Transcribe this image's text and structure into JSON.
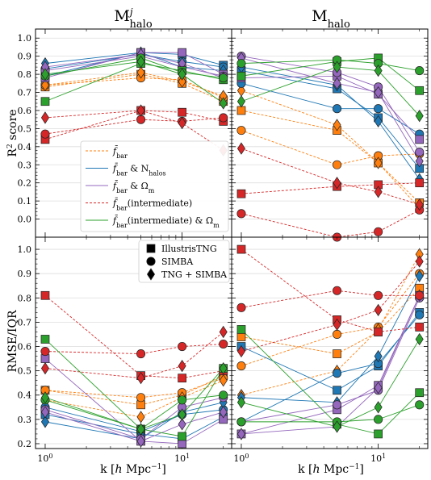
{
  "chart_data": {
    "type": "line+scatter",
    "x_scale": "log",
    "x_ticks": [
      "10^0",
      "10^1"
    ],
    "x_label": "k [h Mpc^-1]",
    "columns": [
      "M^j_halo",
      "M_halo"
    ],
    "colors": {
      "orange": "#ff7f0e",
      "blue": "#1f77b4",
      "purple": "#9467bd",
      "red": "#d62728",
      "green": "#2ca02c"
    },
    "legend_lines": [
      {
        "color": "orange",
        "style": "dashed",
        "label": "f̄_bar"
      },
      {
        "color": "blue",
        "style": "solid",
        "label": "f̄_bar & N_halos"
      },
      {
        "color": "purple",
        "style": "solid",
        "label": "f̄_bar & Ω_m"
      },
      {
        "color": "red",
        "style": "dashed",
        "label": "f̄_bar(intermediate)"
      },
      {
        "color": "green",
        "style": "solid",
        "label": "f̄_bar(intermediate) & Ω_m"
      }
    ],
    "legend_markers": [
      {
        "marker": "square",
        "label": "IllustrisTNG"
      },
      {
        "marker": "circle",
        "label": "SIMBA"
      },
      {
        "marker": "diamond",
        "label": "TNG + SIMBA"
      }
    ],
    "panels": [
      {
        "name": "r2-mhaloj",
        "ylabel": "R^2 score",
        "ylim": [
          -0.1,
          1.05
        ],
        "yticks": [
          "0.0",
          "0.1",
          "0.2",
          "0.3",
          "0.4",
          "0.5",
          "0.6",
          "0.7",
          "0.8",
          "0.9",
          "1.0"
        ],
        "series": [
          {
            "color": "orange",
            "marker": "square",
            "values": [
              0.73,
              0.8,
              0.75,
              0.65
            ]
          },
          {
            "color": "orange",
            "marker": "circle",
            "values": [
              0.74,
              0.78,
              0.77,
              0.67
            ]
          },
          {
            "color": "orange",
            "marker": "diamond",
            "values": [
              0.74,
              0.81,
              0.76,
              0.68
            ]
          },
          {
            "color": "blue",
            "marker": "square",
            "values": [
              0.79,
              0.92,
              0.91,
              0.85
            ]
          },
          {
            "color": "blue",
            "marker": "circle",
            "values": [
              0.83,
              0.91,
              0.87,
              0.84
            ]
          },
          {
            "color": "blue",
            "marker": "diamond",
            "values": [
              0.86,
              0.92,
              0.84,
              0.82
            ]
          },
          {
            "color": "purple",
            "marker": "square",
            "values": [
              0.78,
              0.92,
              0.92,
              0.8
            ]
          },
          {
            "color": "purple",
            "marker": "circle",
            "values": [
              0.82,
              0.9,
              0.84,
              0.79
            ]
          },
          {
            "color": "purple",
            "marker": "diamond",
            "values": [
              0.84,
              0.91,
              0.86,
              0.78
            ]
          },
          {
            "color": "red",
            "marker": "square",
            "values": [
              0.44,
              0.6,
              0.59,
              0.54
            ]
          },
          {
            "color": "red",
            "marker": "circle",
            "values": [
              0.47,
              0.55,
              0.54,
              0.56
            ]
          },
          {
            "color": "red",
            "marker": "diamond",
            "values": [
              0.56,
              0.6,
              0.53,
              0.38
            ]
          },
          {
            "color": "green",
            "marker": "square",
            "values": [
              0.65,
              0.86,
              0.82,
              0.77
            ]
          },
          {
            "color": "green",
            "marker": "circle",
            "values": [
              0.79,
              0.89,
              0.81,
              0.78
            ]
          },
          {
            "color": "green",
            "marker": "diamond",
            "values": [
              0.8,
              0.87,
              0.8,
              0.64
            ]
          }
        ]
      },
      {
        "name": "r2-mhalo",
        "ylim": [
          -0.1,
          1.05
        ],
        "series": [
          {
            "color": "orange",
            "marker": "square",
            "values": [
              0.6,
              0.49,
              0.31,
              0.09
            ]
          },
          {
            "color": "orange",
            "marker": "circle",
            "values": [
              0.49,
              0.3,
              0.35,
              0.36
            ]
          },
          {
            "color": "orange",
            "marker": "diamond",
            "values": [
              0.71,
              0.52,
              0.31,
              0.06
            ]
          },
          {
            "color": "blue",
            "marker": "square",
            "values": [
              0.82,
              0.72,
              0.56,
              0.28
            ]
          },
          {
            "color": "blue",
            "marker": "circle",
            "values": [
              0.75,
              0.61,
              0.61,
              0.47
            ]
          },
          {
            "color": "blue",
            "marker": "diamond",
            "values": [
              0.84,
              0.74,
              0.54,
              0.22
            ]
          },
          {
            "color": "purple",
            "marker": "square",
            "values": [
              0.78,
              0.79,
              0.69,
              0.44
            ]
          },
          {
            "color": "purple",
            "marker": "circle",
            "values": [
              0.9,
              0.81,
              0.73,
              0.37
            ]
          },
          {
            "color": "purple",
            "marker": "diamond",
            "values": [
              0.89,
              0.75,
              0.7,
              0.32
            ]
          },
          {
            "color": "red",
            "marker": "square",
            "values": [
              0.14,
              0.18,
              0.19,
              0.2
            ]
          },
          {
            "color": "red",
            "marker": "circle",
            "values": [
              0.03,
              -0.1,
              -0.07,
              0.05
            ]
          },
          {
            "color": "red",
            "marker": "diamond",
            "values": [
              0.39,
              0.2,
              0.15,
              0.08
            ]
          },
          {
            "color": "green",
            "marker": "square",
            "values": [
              0.79,
              0.87,
              0.89,
              0.71
            ]
          },
          {
            "color": "green",
            "marker": "circle",
            "values": [
              0.86,
              0.88,
              0.86,
              0.82
            ]
          },
          {
            "color": "green",
            "marker": "diamond",
            "values": [
              0.65,
              0.84,
              0.82,
              0.57
            ]
          }
        ]
      },
      {
        "name": "rmse-mhaloj",
        "ylabel": "RMSE/IQR",
        "ylim": [
          0.18,
          1.05
        ],
        "yticks": [
          "0.2",
          "0.3",
          "0.4",
          "0.5",
          "0.6",
          "0.7",
          "0.8",
          "0.9",
          "1.0"
        ],
        "series": [
          {
            "color": "orange",
            "marker": "square",
            "values": [
              0.42,
              0.36,
              0.4,
              0.48
            ]
          },
          {
            "color": "orange",
            "marker": "circle",
            "values": [
              0.42,
              0.39,
              0.41,
              0.47
            ]
          },
          {
            "color": "orange",
            "marker": "diamond",
            "values": [
              0.38,
              0.31,
              0.39,
              0.46
            ]
          },
          {
            "color": "blue",
            "marker": "square",
            "values": [
              0.32,
              0.24,
              0.22,
              0.31
            ]
          },
          {
            "color": "blue",
            "marker": "circle",
            "values": [
              0.35,
              0.25,
              0.32,
              0.34
            ]
          },
          {
            "color": "blue",
            "marker": "diamond",
            "values": [
              0.29,
              0.22,
              0.33,
              0.37
            ]
          },
          {
            "color": "purple",
            "marker": "square",
            "values": [
              0.55,
              0.21,
              0.2,
              0.3
            ]
          },
          {
            "color": "purple",
            "marker": "circle",
            "values": [
              0.34,
              0.22,
              0.35,
              0.39
            ]
          },
          {
            "color": "purple",
            "marker": "diamond",
            "values": [
              0.33,
              0.21,
              0.28,
              0.33
            ]
          },
          {
            "color": "red",
            "marker": "square",
            "values": [
              0.81,
              0.48,
              0.47,
              0.5
            ]
          },
          {
            "color": "red",
            "marker": "circle",
            "values": [
              0.58,
              0.57,
              0.6,
              0.61
            ]
          },
          {
            "color": "red",
            "marker": "diamond",
            "values": [
              0.51,
              0.47,
              0.52,
              0.66
            ]
          },
          {
            "color": "green",
            "marker": "square",
            "values": [
              0.63,
              0.26,
              0.23,
              0.51
            ]
          },
          {
            "color": "green",
            "marker": "circle",
            "values": [
              0.38,
              0.26,
              0.38,
              0.4
            ]
          },
          {
            "color": "green",
            "marker": "diamond",
            "values": [
              0.39,
              0.26,
              0.32,
              0.51
            ]
          }
        ]
      },
      {
        "name": "rmse-mhalo",
        "ylim": [
          0.18,
          1.05
        ],
        "series": [
          {
            "color": "orange",
            "marker": "square",
            "values": [
              0.64,
              0.57,
              0.66,
              0.84
            ]
          },
          {
            "color": "orange",
            "marker": "circle",
            "values": [
              0.52,
              0.65,
              0.68,
              0.9
            ]
          },
          {
            "color": "orange",
            "marker": "diamond",
            "values": [
              0.4,
              0.5,
              0.67,
              0.98
            ]
          },
          {
            "color": "blue",
            "marker": "square",
            "values": [
              0.6,
              0.42,
              0.52,
              0.74
            ]
          },
          {
            "color": "blue",
            "marker": "circle",
            "values": [
              0.29,
              0.49,
              0.53,
              0.73
            ]
          },
          {
            "color": "blue",
            "marker": "diamond",
            "values": [
              0.39,
              0.37,
              0.56,
              0.89
            ]
          },
          {
            "color": "purple",
            "marker": "square",
            "values": [
              0.24,
              0.34,
              0.44,
              0.81
            ]
          },
          {
            "color": "purple",
            "marker": "circle",
            "values": [
              0.29,
              0.36,
              0.42,
              0.8
            ]
          },
          {
            "color": "purple",
            "marker": "diamond",
            "values": [
              0.24,
              0.27,
              0.43,
              0.81
            ]
          },
          {
            "color": "red",
            "marker": "square",
            "values": [
              1.0,
              0.71,
              0.66,
              0.68
            ]
          },
          {
            "color": "red",
            "marker": "circle",
            "values": [
              0.76,
              0.83,
              0.81,
              0.81
            ]
          },
          {
            "color": "red",
            "marker": "diamond",
            "values": [
              0.58,
              0.69,
              0.75,
              0.95
            ]
          },
          {
            "color": "green",
            "marker": "square",
            "values": [
              0.67,
              0.28,
              0.24,
              0.41
            ]
          },
          {
            "color": "green",
            "marker": "circle",
            "values": [
              0.29,
              0.29,
              0.3,
              0.36
            ]
          },
          {
            "color": "green",
            "marker": "diamond",
            "values": [
              0.37,
              0.27,
              0.35,
              0.63
            ]
          }
        ]
      }
    ]
  }
}
